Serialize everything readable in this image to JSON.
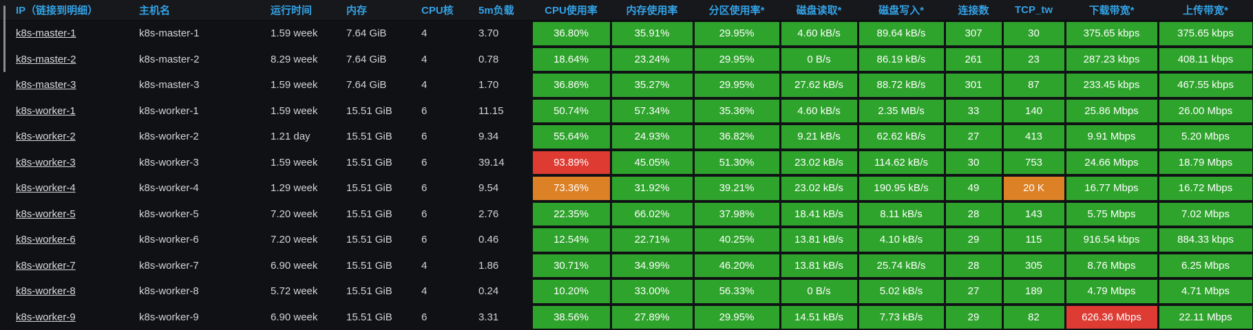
{
  "panel": {
    "name": "k8s-node-metrics-table"
  },
  "colors": {
    "green": "#2fa42d",
    "red": "#de3b33",
    "orange": "#dd8127",
    "header_text": "#33a2e5",
    "body_text": "#d2d4d6",
    "link_text": "#d8dadc",
    "cell_text": "#ffffff",
    "header_bg": "#17181c",
    "body_bg": "#101114"
  },
  "table": {
    "columns": [
      {
        "key": "ip",
        "label": "IP（链接到明细）",
        "colored": false
      },
      {
        "key": "hostname",
        "label": "主机名",
        "colored": false
      },
      {
        "key": "uptime",
        "label": "运行时间",
        "colored": false
      },
      {
        "key": "memory",
        "label": "内存",
        "colored": false
      },
      {
        "key": "cpu_cores",
        "label": "CPU核",
        "colored": false
      },
      {
        "key": "load_5m",
        "label": "5m负载",
        "colored": false
      },
      {
        "key": "cpu_usage",
        "label": "CPU使用率",
        "colored": true
      },
      {
        "key": "mem_usage",
        "label": "内存使用率",
        "colored": true
      },
      {
        "key": "partition_usage",
        "label": "分区使用率*",
        "colored": true
      },
      {
        "key": "disk_read",
        "label": "磁盘读取*",
        "colored": true
      },
      {
        "key": "disk_write",
        "label": "磁盘写入*",
        "colored": true
      },
      {
        "key": "connections",
        "label": "连接数",
        "colored": true
      },
      {
        "key": "tcp_tw",
        "label": "TCP_tw",
        "colored": true
      },
      {
        "key": "download_bw",
        "label": "下载带宽*",
        "colored": true
      },
      {
        "key": "upload_bw",
        "label": "上传带宽*",
        "colored": true
      }
    ],
    "rows": [
      {
        "cells": [
          {
            "text": "k8s-master-1",
            "kind": "link"
          },
          {
            "text": "k8s-master-1"
          },
          {
            "text": "1.59 week"
          },
          {
            "text": "7.64 GiB"
          },
          {
            "text": "4"
          },
          {
            "text": "3.70"
          },
          {
            "text": "36.80%",
            "color": "green"
          },
          {
            "text": "35.91%",
            "color": "green"
          },
          {
            "text": "29.95%",
            "color": "green"
          },
          {
            "text": "4.60 kB/s",
            "color": "green"
          },
          {
            "text": "89.64 kB/s",
            "color": "green"
          },
          {
            "text": "307",
            "color": "green"
          },
          {
            "text": "30",
            "color": "green"
          },
          {
            "text": "375.65 kbps",
            "color": "green"
          },
          {
            "text": "375.65 kbps",
            "color": "green"
          }
        ]
      },
      {
        "cells": [
          {
            "text": "k8s-master-2",
            "kind": "link"
          },
          {
            "text": "k8s-master-2"
          },
          {
            "text": "8.29 week"
          },
          {
            "text": "7.64 GiB"
          },
          {
            "text": "4"
          },
          {
            "text": "0.78"
          },
          {
            "text": "18.64%",
            "color": "green"
          },
          {
            "text": "23.24%",
            "color": "green"
          },
          {
            "text": "29.95%",
            "color": "green"
          },
          {
            "text": "0 B/s",
            "color": "green"
          },
          {
            "text": "86.19 kB/s",
            "color": "green"
          },
          {
            "text": "261",
            "color": "green"
          },
          {
            "text": "23",
            "color": "green"
          },
          {
            "text": "287.23 kbps",
            "color": "green"
          },
          {
            "text": "408.11 kbps",
            "color": "green"
          }
        ]
      },
      {
        "cells": [
          {
            "text": "k8s-master-3",
            "kind": "link"
          },
          {
            "text": "k8s-master-3"
          },
          {
            "text": "1.59 week"
          },
          {
            "text": "7.64 GiB"
          },
          {
            "text": "4"
          },
          {
            "text": "1.70"
          },
          {
            "text": "36.86%",
            "color": "green"
          },
          {
            "text": "35.27%",
            "color": "green"
          },
          {
            "text": "29.95%",
            "color": "green"
          },
          {
            "text": "27.62 kB/s",
            "color": "green"
          },
          {
            "text": "88.72 kB/s",
            "color": "green"
          },
          {
            "text": "301",
            "color": "green"
          },
          {
            "text": "87",
            "color": "green"
          },
          {
            "text": "233.45 kbps",
            "color": "green"
          },
          {
            "text": "467.55 kbps",
            "color": "green"
          }
        ]
      },
      {
        "cells": [
          {
            "text": "k8s-worker-1",
            "kind": "link"
          },
          {
            "text": "k8s-worker-1"
          },
          {
            "text": "1.59 week"
          },
          {
            "text": "15.51 GiB"
          },
          {
            "text": "6"
          },
          {
            "text": "11.15"
          },
          {
            "text": "50.74%",
            "color": "green"
          },
          {
            "text": "57.34%",
            "color": "green"
          },
          {
            "text": "35.36%",
            "color": "green"
          },
          {
            "text": "4.60 kB/s",
            "color": "green"
          },
          {
            "text": "2.35 MB/s",
            "color": "green"
          },
          {
            "text": "33",
            "color": "green"
          },
          {
            "text": "140",
            "color": "green"
          },
          {
            "text": "25.86 Mbps",
            "color": "green"
          },
          {
            "text": "26.00 Mbps",
            "color": "green"
          }
        ]
      },
      {
        "cells": [
          {
            "text": "k8s-worker-2",
            "kind": "link"
          },
          {
            "text": "k8s-worker-2"
          },
          {
            "text": "1.21 day"
          },
          {
            "text": "15.51 GiB"
          },
          {
            "text": "6"
          },
          {
            "text": "9.34"
          },
          {
            "text": "55.64%",
            "color": "green"
          },
          {
            "text": "24.93%",
            "color": "green"
          },
          {
            "text": "36.82%",
            "color": "green"
          },
          {
            "text": "9.21 kB/s",
            "color": "green"
          },
          {
            "text": "62.62 kB/s",
            "color": "green"
          },
          {
            "text": "27",
            "color": "green"
          },
          {
            "text": "413",
            "color": "green"
          },
          {
            "text": "9.91 Mbps",
            "color": "green"
          },
          {
            "text": "5.20 Mbps",
            "color": "green"
          }
        ]
      },
      {
        "cells": [
          {
            "text": "k8s-worker-3",
            "kind": "link"
          },
          {
            "text": "k8s-worker-3"
          },
          {
            "text": "1.59 week"
          },
          {
            "text": "15.51 GiB"
          },
          {
            "text": "6"
          },
          {
            "text": "39.14"
          },
          {
            "text": "93.89%",
            "color": "red"
          },
          {
            "text": "45.05%",
            "color": "green"
          },
          {
            "text": "51.30%",
            "color": "green"
          },
          {
            "text": "23.02 kB/s",
            "color": "green"
          },
          {
            "text": "114.62 kB/s",
            "color": "green"
          },
          {
            "text": "30",
            "color": "green"
          },
          {
            "text": "753",
            "color": "green"
          },
          {
            "text": "24.66 Mbps",
            "color": "green"
          },
          {
            "text": "18.79 Mbps",
            "color": "green"
          }
        ]
      },
      {
        "cells": [
          {
            "text": "k8s-worker-4",
            "kind": "link"
          },
          {
            "text": "k8s-worker-4"
          },
          {
            "text": "1.29 week"
          },
          {
            "text": "15.51 GiB"
          },
          {
            "text": "6"
          },
          {
            "text": "9.54"
          },
          {
            "text": "73.36%",
            "color": "orange"
          },
          {
            "text": "31.92%",
            "color": "green"
          },
          {
            "text": "39.21%",
            "color": "green"
          },
          {
            "text": "23.02 kB/s",
            "color": "green"
          },
          {
            "text": "190.95 kB/s",
            "color": "green"
          },
          {
            "text": "49",
            "color": "green"
          },
          {
            "text": "20 K",
            "color": "orange"
          },
          {
            "text": "16.77 Mbps",
            "color": "green"
          },
          {
            "text": "16.72 Mbps",
            "color": "green"
          }
        ]
      },
      {
        "cells": [
          {
            "text": "k8s-worker-5",
            "kind": "link"
          },
          {
            "text": "k8s-worker-5"
          },
          {
            "text": "7.20 week"
          },
          {
            "text": "15.51 GiB"
          },
          {
            "text": "6"
          },
          {
            "text": "2.76"
          },
          {
            "text": "22.35%",
            "color": "green"
          },
          {
            "text": "66.02%",
            "color": "green"
          },
          {
            "text": "37.98%",
            "color": "green"
          },
          {
            "text": "18.41 kB/s",
            "color": "green"
          },
          {
            "text": "8.11 kB/s",
            "color": "green"
          },
          {
            "text": "28",
            "color": "green"
          },
          {
            "text": "143",
            "color": "green"
          },
          {
            "text": "5.75 Mbps",
            "color": "green"
          },
          {
            "text": "7.02 Mbps",
            "color": "green"
          }
        ]
      },
      {
        "cells": [
          {
            "text": "k8s-worker-6",
            "kind": "link"
          },
          {
            "text": "k8s-worker-6"
          },
          {
            "text": "7.20 week"
          },
          {
            "text": "15.51 GiB"
          },
          {
            "text": "6"
          },
          {
            "text": "0.46"
          },
          {
            "text": "12.54%",
            "color": "green"
          },
          {
            "text": "22.71%",
            "color": "green"
          },
          {
            "text": "40.25%",
            "color": "green"
          },
          {
            "text": "13.81 kB/s",
            "color": "green"
          },
          {
            "text": "4.10 kB/s",
            "color": "green"
          },
          {
            "text": "29",
            "color": "green"
          },
          {
            "text": "115",
            "color": "green"
          },
          {
            "text": "916.54 kbps",
            "color": "green"
          },
          {
            "text": "884.33 kbps",
            "color": "green"
          }
        ]
      },
      {
        "cells": [
          {
            "text": "k8s-worker-7",
            "kind": "link"
          },
          {
            "text": "k8s-worker-7"
          },
          {
            "text": "6.90 week"
          },
          {
            "text": "15.51 GiB"
          },
          {
            "text": "4"
          },
          {
            "text": "1.86"
          },
          {
            "text": "30.71%",
            "color": "green"
          },
          {
            "text": "34.99%",
            "color": "green"
          },
          {
            "text": "46.20%",
            "color": "green"
          },
          {
            "text": "13.81 kB/s",
            "color": "green"
          },
          {
            "text": "25.74 kB/s",
            "color": "green"
          },
          {
            "text": "28",
            "color": "green"
          },
          {
            "text": "305",
            "color": "green"
          },
          {
            "text": "8.76 Mbps",
            "color": "green"
          },
          {
            "text": "6.25 Mbps",
            "color": "green"
          }
        ]
      },
      {
        "cells": [
          {
            "text": "k8s-worker-8",
            "kind": "link"
          },
          {
            "text": "k8s-worker-8"
          },
          {
            "text": "5.72 week"
          },
          {
            "text": "15.51 GiB"
          },
          {
            "text": "4"
          },
          {
            "text": "0.24"
          },
          {
            "text": "10.20%",
            "color": "green"
          },
          {
            "text": "33.00%",
            "color": "green"
          },
          {
            "text": "56.33%",
            "color": "green"
          },
          {
            "text": "0 B/s",
            "color": "green"
          },
          {
            "text": "5.02 kB/s",
            "color": "green"
          },
          {
            "text": "27",
            "color": "green"
          },
          {
            "text": "189",
            "color": "green"
          },
          {
            "text": "4.79 Mbps",
            "color": "green"
          },
          {
            "text": "4.71 Mbps",
            "color": "green"
          }
        ]
      },
      {
        "cells": [
          {
            "text": "k8s-worker-9",
            "kind": "link"
          },
          {
            "text": "k8s-worker-9"
          },
          {
            "text": "6.90 week"
          },
          {
            "text": "15.51 GiB"
          },
          {
            "text": "6"
          },
          {
            "text": "3.31"
          },
          {
            "text": "38.56%",
            "color": "green"
          },
          {
            "text": "27.89%",
            "color": "green"
          },
          {
            "text": "29.95%",
            "color": "green"
          },
          {
            "text": "14.51 kB/s",
            "color": "green"
          },
          {
            "text": "7.73 kB/s",
            "color": "green"
          },
          {
            "text": "29",
            "color": "green"
          },
          {
            "text": "82",
            "color": "green"
          },
          {
            "text": "626.36 Mbps",
            "color": "red"
          },
          {
            "text": "22.11 Mbps",
            "color": "green"
          }
        ]
      }
    ]
  }
}
